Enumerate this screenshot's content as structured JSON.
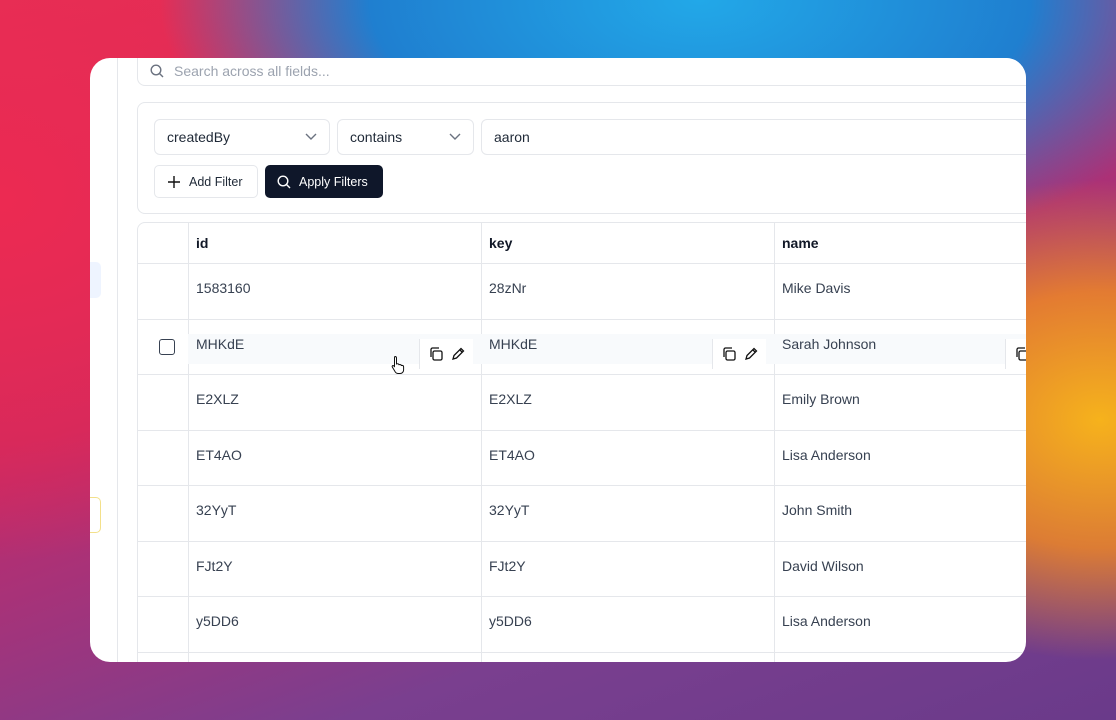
{
  "search": {
    "placeholder": "Search across all fields..."
  },
  "filter": {
    "field": "createdBy",
    "operator": "contains",
    "value": "aaron",
    "add_button": "Add Filter",
    "apply_button": "Apply Filters"
  },
  "table": {
    "columns": [
      "id",
      "key",
      "name"
    ],
    "rows": [
      [
        "1583160",
        "28zNr",
        "Mike Davis"
      ],
      [
        "MHKdE",
        "MHKdE",
        "Sarah Johnson"
      ],
      [
        "E2XLZ",
        "E2XLZ",
        "Emily Brown"
      ],
      [
        "ET4AO",
        "ET4AO",
        "Lisa Anderson"
      ],
      [
        "32YyT",
        "32YyT",
        "John Smith"
      ],
      [
        "FJt2Y",
        "FJt2Y",
        "David Wilson"
      ],
      [
        "y5DD6",
        "y5DD6",
        "Lisa Anderson"
      ]
    ]
  }
}
